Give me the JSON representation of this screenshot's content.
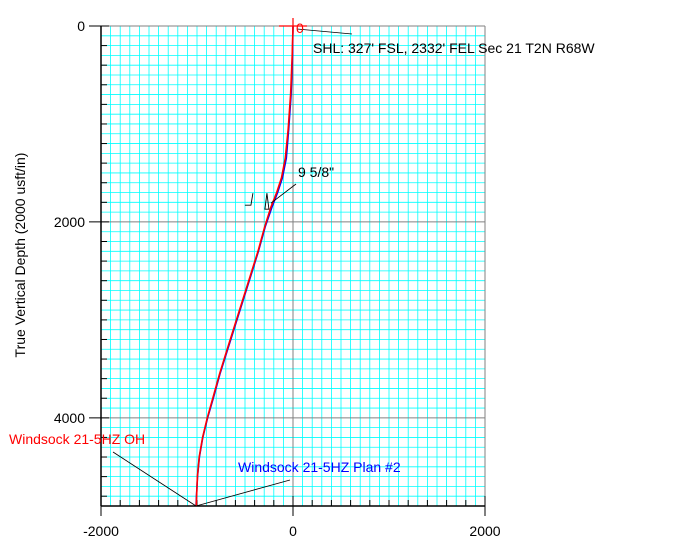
{
  "chart_data": {
    "type": "line",
    "ylabel": "True Vertical Depth (2000 usft/in)",
    "xlabel": "",
    "xlim": [
      -2000,
      2000
    ],
    "ylim": [
      0,
      4900
    ],
    "y_inverted": true,
    "grid": true,
    "x_ticks": [
      {
        "value": -2000,
        "label": "-2000"
      },
      {
        "value": 0,
        "label": "0"
      },
      {
        "value": 2000,
        "label": "2000"
      }
    ],
    "y_ticks": [
      {
        "value": 0,
        "label": "0"
      },
      {
        "value": 2000,
        "label": "2000"
      },
      {
        "value": 4000,
        "label": "4000"
      }
    ],
    "series": [
      {
        "name": "Windsock 21-5HZ Plan #2",
        "color": "#0000ff",
        "x": [
          0,
          -5,
          -20,
          -45,
          -70,
          -110,
          -160,
          -220,
          -290,
          -360,
          -440,
          -520,
          -600,
          -680,
          -760,
          -830,
          -890,
          -940,
          -975,
          -995,
          -1005,
          -1010
        ],
        "y": [
          0,
          300,
          700,
          1050,
          1350,
          1550,
          1700,
          1850,
          2050,
          2300,
          2550,
          2800,
          3050,
          3300,
          3550,
          3800,
          4000,
          4200,
          4400,
          4600,
          4800,
          4900
        ]
      },
      {
        "name": "Windsock 21-5HZ OH",
        "color": "#ff0000",
        "x": [
          0,
          -8,
          -25,
          -50,
          -80,
          -120,
          -170,
          -230,
          -295,
          -365,
          -445,
          -525,
          -605,
          -685,
          -765,
          -835,
          -893,
          -942,
          -977,
          -996,
          -1004,
          -1008
        ],
        "y": [
          0,
          300,
          700,
          1050,
          1350,
          1550,
          1700,
          1850,
          2050,
          2300,
          2550,
          2800,
          3050,
          3300,
          3550,
          3800,
          4000,
          4200,
          4400,
          4600,
          4800,
          4900
        ]
      }
    ],
    "annotations": [
      {
        "text": "0",
        "color": "#ff0000"
      },
      {
        "text": "SHL: 327' FSL, 2332' FEL Sec 21 T2N R68W",
        "color": "#000000"
      },
      {
        "text": "9  5/8\"",
        "color": "#000000"
      },
      {
        "text": "Windsock 21-5HZ OH",
        "color": "#ff0000"
      },
      {
        "text": "Windsock 21-5HZ Plan #2",
        "color": "#0000ff"
      }
    ]
  },
  "colors": {
    "minor_grid": "#00ffff",
    "major_grid": "#808080",
    "axis": "#000000"
  }
}
